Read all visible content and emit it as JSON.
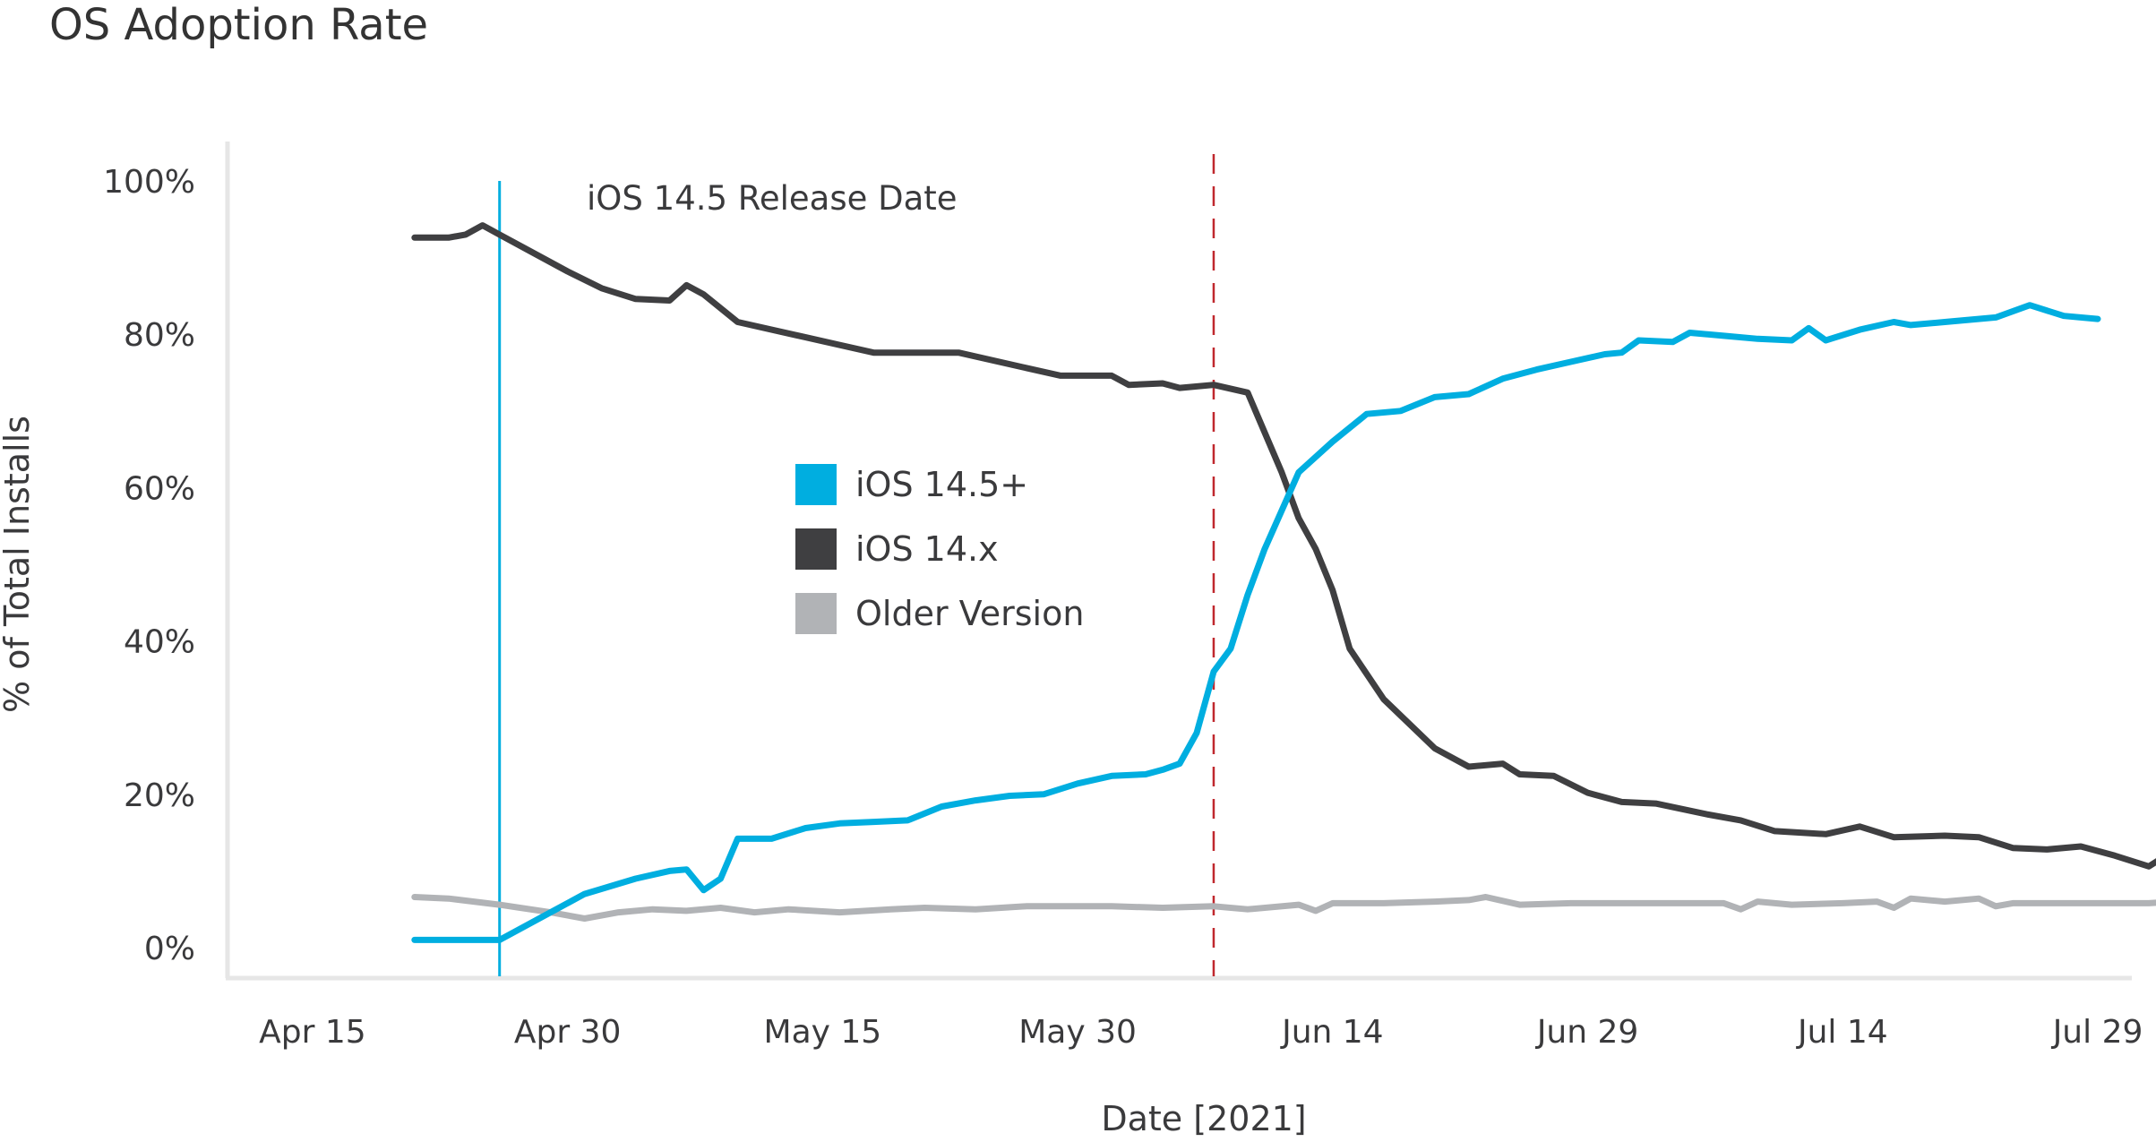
{
  "chart_data": {
    "type": "line",
    "title": "OS Adoption Rate",
    "xlabel": "Date [2021]",
    "ylabel": "% of Total Installs",
    "x_unit": "date",
    "xlim": [
      "2021-04-10",
      "2021-07-31"
    ],
    "ylim": [
      0,
      100
    ],
    "x_ticks": [
      {
        "label": "Apr 15",
        "date": "2021-04-15"
      },
      {
        "label": "Apr 30",
        "date": "2021-04-30"
      },
      {
        "label": "May 15",
        "date": "2021-05-15"
      },
      {
        "label": "May 30",
        "date": "2021-05-30"
      },
      {
        "label": "Jun 14",
        "date": "2021-06-14"
      },
      {
        "label": "Jun 29",
        "date": "2021-06-29"
      },
      {
        "label": "Jul 14",
        "date": "2021-07-14"
      },
      {
        "label": "Jul 29",
        "date": "2021-07-29"
      }
    ],
    "y_ticks": [
      {
        "label": "0%",
        "value": 0
      },
      {
        "label": "20%",
        "value": 20
      },
      {
        "label": "40%",
        "value": 40
      },
      {
        "label": "60%",
        "value": 60
      },
      {
        "label": "80%",
        "value": 80
      },
      {
        "label": "100%",
        "value": 100
      }
    ],
    "grid": false,
    "legend_position": "center",
    "annotations": [
      {
        "label": "iOS 14.5 Release Date",
        "date": "2021-04-26",
        "style": "solid",
        "color": "#00aee0"
      },
      {
        "label": "",
        "date": "2021-06-07",
        "style": "dashed",
        "color": "#c0282e"
      }
    ],
    "series": [
      {
        "name": "iOS 14.5+",
        "color": "#00aee0",
        "points": [
          [
            "2021-04-21",
            1
          ],
          [
            "2021-04-26",
            1
          ],
          [
            "2021-05-01",
            7
          ],
          [
            "2021-05-04",
            9
          ],
          [
            "2021-05-06",
            10
          ],
          [
            "2021-05-07",
            10.2
          ],
          [
            "2021-05-08",
            7.5
          ],
          [
            "2021-05-09",
            9
          ],
          [
            "2021-05-10",
            14.2
          ],
          [
            "2021-05-12",
            14.2
          ],
          [
            "2021-05-14",
            15.6
          ],
          [
            "2021-05-16",
            16.2
          ],
          [
            "2021-05-18",
            16.4
          ],
          [
            "2021-05-20",
            16.6
          ],
          [
            "2021-05-22",
            18.4
          ],
          [
            "2021-05-24",
            19.2
          ],
          [
            "2021-05-26",
            19.8
          ],
          [
            "2021-05-28",
            20
          ],
          [
            "2021-05-30",
            21.4
          ],
          [
            "2021-06-01",
            22.4
          ],
          [
            "2021-06-03",
            22.6
          ],
          [
            "2021-06-04",
            23.2
          ],
          [
            "2021-06-05",
            24
          ],
          [
            "2021-06-06",
            28
          ],
          [
            "2021-06-07",
            36
          ],
          [
            "2021-06-08",
            39
          ],
          [
            "2021-06-09",
            46
          ],
          [
            "2021-06-10",
            52
          ],
          [
            "2021-06-12",
            62
          ],
          [
            "2021-06-14",
            66
          ],
          [
            "2021-06-16",
            69.6
          ],
          [
            "2021-06-18",
            70
          ],
          [
            "2021-06-20",
            71.8
          ],
          [
            "2021-06-22",
            72.2
          ],
          [
            "2021-06-24",
            74.2
          ],
          [
            "2021-06-26",
            75.4
          ],
          [
            "2021-06-28",
            76.4
          ],
          [
            "2021-06-30",
            77.4
          ],
          [
            "2021-07-01",
            77.6
          ],
          [
            "2021-07-02",
            79.2
          ],
          [
            "2021-07-04",
            79
          ],
          [
            "2021-07-05",
            80.2
          ],
          [
            "2021-07-07",
            79.8
          ],
          [
            "2021-07-09",
            79.4
          ],
          [
            "2021-07-11",
            79.2
          ],
          [
            "2021-07-12",
            80.8
          ],
          [
            "2021-07-13",
            79.2
          ],
          [
            "2021-07-15",
            80.6
          ],
          [
            "2021-07-17",
            81.6
          ],
          [
            "2021-07-18",
            81.2
          ],
          [
            "2021-07-20",
            81.6
          ],
          [
            "2021-07-23",
            82.2
          ],
          [
            "2021-07-25",
            83.8
          ],
          [
            "2021-07-27",
            82.4
          ],
          [
            "2021-07-29",
            82
          ]
        ]
      },
      {
        "name": "iOS 14.x",
        "color": "#3f3f41",
        "points": [
          [
            "2021-04-21",
            92.6
          ],
          [
            "2021-04-23",
            92.6
          ],
          [
            "2021-04-24",
            93
          ],
          [
            "2021-04-25",
            94.2
          ],
          [
            "2021-04-26",
            93
          ],
          [
            "2021-04-28",
            90.6
          ],
          [
            "2021-04-30",
            88.2
          ],
          [
            "2021-05-02",
            86
          ],
          [
            "2021-05-04",
            84.6
          ],
          [
            "2021-05-06",
            84.4
          ],
          [
            "2021-05-07",
            86.4
          ],
          [
            "2021-05-08",
            85.2
          ],
          [
            "2021-05-10",
            81.6
          ],
          [
            "2021-05-14",
            79.6
          ],
          [
            "2021-05-18",
            77.6
          ],
          [
            "2021-05-23",
            77.6
          ],
          [
            "2021-05-27",
            75.6
          ],
          [
            "2021-05-29",
            74.6
          ],
          [
            "2021-06-01",
            74.6
          ],
          [
            "2021-06-02",
            73.4
          ],
          [
            "2021-06-04",
            73.6
          ],
          [
            "2021-06-05",
            73
          ],
          [
            "2021-06-07",
            73.4
          ],
          [
            "2021-06-09",
            72.4
          ],
          [
            "2021-06-11",
            62
          ],
          [
            "2021-06-12",
            56
          ],
          [
            "2021-06-13",
            52
          ],
          [
            "2021-06-14",
            46.6
          ],
          [
            "2021-06-15",
            39
          ],
          [
            "2021-06-17",
            32.4
          ],
          [
            "2021-06-20",
            26
          ],
          [
            "2021-06-22",
            23.6
          ],
          [
            "2021-06-24",
            24
          ],
          [
            "2021-06-25",
            22.6
          ],
          [
            "2021-06-27",
            22.4
          ],
          [
            "2021-06-29",
            20.2
          ],
          [
            "2021-07-01",
            19
          ],
          [
            "2021-07-03",
            18.8
          ],
          [
            "2021-07-06",
            17.4
          ],
          [
            "2021-07-08",
            16.6
          ],
          [
            "2021-07-10",
            15.2
          ],
          [
            "2021-07-13",
            14.8
          ],
          [
            "2021-07-15",
            15.8
          ],
          [
            "2021-07-17",
            14.4
          ],
          [
            "2021-07-20",
            14.6
          ],
          [
            "2021-07-22",
            14.4
          ],
          [
            "2021-07-24",
            13
          ],
          [
            "2021-07-26",
            12.8
          ],
          [
            "2021-07-28",
            13.2
          ],
          [
            "2021-07-30",
            12
          ],
          [
            "2021-08-01",
            10.6
          ],
          [
            "2021-08-02",
            12
          ],
          [
            "2021-08-04",
            12
          ]
        ]
      },
      {
        "name": "Older Version",
        "color": "#b1b3b6",
        "points": [
          [
            "2021-04-21",
            6.6
          ],
          [
            "2021-04-23",
            6.4
          ],
          [
            "2021-04-26",
            5.6
          ],
          [
            "2021-04-29",
            4.6
          ],
          [
            "2021-05-01",
            3.8
          ],
          [
            "2021-05-03",
            4.6
          ],
          [
            "2021-05-05",
            5
          ],
          [
            "2021-05-07",
            4.8
          ],
          [
            "2021-05-09",
            5.2
          ],
          [
            "2021-05-11",
            4.6
          ],
          [
            "2021-05-13",
            5
          ],
          [
            "2021-05-16",
            4.6
          ],
          [
            "2021-05-19",
            5
          ],
          [
            "2021-05-21",
            5.2
          ],
          [
            "2021-05-24",
            5
          ],
          [
            "2021-05-27",
            5.4
          ],
          [
            "2021-05-29",
            5.4
          ],
          [
            "2021-06-01",
            5.4
          ],
          [
            "2021-06-04",
            5.2
          ],
          [
            "2021-06-07",
            5.4
          ],
          [
            "2021-06-09",
            5
          ],
          [
            "2021-06-12",
            5.6
          ],
          [
            "2021-06-13",
            4.8
          ],
          [
            "2021-06-14",
            5.8
          ],
          [
            "2021-06-17",
            5.8
          ],
          [
            "2021-06-20",
            6
          ],
          [
            "2021-06-22",
            6.2
          ],
          [
            "2021-06-23",
            6.6
          ],
          [
            "2021-06-25",
            5.6
          ],
          [
            "2021-06-28",
            5.8
          ],
          [
            "2021-07-01",
            5.8
          ],
          [
            "2021-07-04",
            5.8
          ],
          [
            "2021-07-07",
            5.8
          ],
          [
            "2021-07-08",
            5
          ],
          [
            "2021-07-09",
            6
          ],
          [
            "2021-07-11",
            5.6
          ],
          [
            "2021-07-14",
            5.8
          ],
          [
            "2021-07-16",
            6
          ],
          [
            "2021-07-17",
            5.2
          ],
          [
            "2021-07-18",
            6.4
          ],
          [
            "2021-07-20",
            6
          ],
          [
            "2021-07-22",
            6.4
          ],
          [
            "2021-07-23",
            5.4
          ],
          [
            "2021-07-24",
            5.8
          ],
          [
            "2021-07-28",
            5.8
          ],
          [
            "2021-08-01",
            5.8
          ],
          [
            "2021-08-04",
            6.2
          ]
        ]
      }
    ]
  }
}
